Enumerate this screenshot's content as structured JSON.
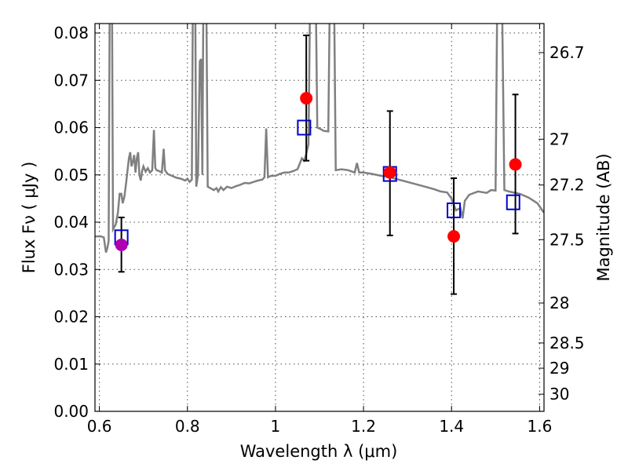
{
  "chart_data": {
    "type": "scatter",
    "xlabel": "Wavelength  λ (μm)",
    "ylabel": "Flux  Fν  ( μJy )",
    "y2label": "Magnitude (AB)",
    "xlim": [
      0.59,
      1.61
    ],
    "ylim": [
      0.0,
      0.082
    ],
    "grid": true,
    "x_ticks": [
      {
        "value": 0.6,
        "label": "0.6"
      },
      {
        "value": 0.8,
        "label": "0.8"
      },
      {
        "value": 1.0,
        "label": "1"
      },
      {
        "value": 1.2,
        "label": "1.2"
      },
      {
        "value": 1.4,
        "label": "1.4"
      },
      {
        "value": 1.6,
        "label": "1.6"
      }
    ],
    "y_ticks": [
      {
        "value": 0.0,
        "label": "0.00"
      },
      {
        "value": 0.01,
        "label": "0.01"
      },
      {
        "value": 0.02,
        "label": "0.02"
      },
      {
        "value": 0.03,
        "label": "0.03"
      },
      {
        "value": 0.04,
        "label": "0.04"
      },
      {
        "value": 0.05,
        "label": "0.05"
      },
      {
        "value": 0.06,
        "label": "0.06"
      },
      {
        "value": 0.07,
        "label": "0.07"
      },
      {
        "value": 0.08,
        "label": "0.08"
      }
    ],
    "y2_ticks": [
      {
        "value": 26.7,
        "label": "26.7"
      },
      {
        "value": 27.0,
        "label": "27"
      },
      {
        "value": 27.2,
        "label": "27.2"
      },
      {
        "value": 27.5,
        "label": "27.5"
      },
      {
        "value": 28.0,
        "label": "28"
      },
      {
        "value": 28.5,
        "label": "28.5"
      },
      {
        "value": 29.0,
        "label": "29"
      },
      {
        "value": 30.0,
        "label": "30"
      }
    ],
    "template_spectrum": {
      "color": "#808080",
      "points": [
        [
          0.59,
          0.037
        ],
        [
          0.603,
          0.037
        ],
        [
          0.61,
          0.0368
        ],
        [
          0.615,
          0.0336
        ],
        [
          0.618,
          0.0345
        ],
        [
          0.621,
          0.036
        ],
        [
          0.624,
          0.1
        ],
        [
          0.628,
          0.1
        ],
        [
          0.631,
          0.0385
        ],
        [
          0.637,
          0.0395
        ],
        [
          0.642,
          0.042
        ],
        [
          0.646,
          0.046
        ],
        [
          0.65,
          0.046
        ],
        [
          0.653,
          0.044
        ],
        [
          0.657,
          0.0455
        ],
        [
          0.661,
          0.0485
        ],
        [
          0.664,
          0.051
        ],
        [
          0.667,
          0.0535
        ],
        [
          0.67,
          0.0548
        ],
        [
          0.673,
          0.0518
        ],
        [
          0.676,
          0.0528
        ],
        [
          0.679,
          0.0542
        ],
        [
          0.682,
          0.0505
        ],
        [
          0.685,
          0.0535
        ],
        [
          0.688,
          0.0548
        ],
        [
          0.691,
          0.05
        ],
        [
          0.694,
          0.0488
        ],
        [
          0.697,
          0.0508
        ],
        [
          0.7,
          0.0518
        ],
        [
          0.705,
          0.0507
        ],
        [
          0.71,
          0.0514
        ],
        [
          0.715,
          0.0505
        ],
        [
          0.72,
          0.051
        ],
        [
          0.724,
          0.0595
        ],
        [
          0.727,
          0.0515
        ],
        [
          0.73,
          0.051
        ],
        [
          0.736,
          0.0508
        ],
        [
          0.742,
          0.0505
        ],
        [
          0.746,
          0.0555
        ],
        [
          0.749,
          0.051
        ],
        [
          0.755,
          0.0502
        ],
        [
          0.765,
          0.0498
        ],
        [
          0.775,
          0.0494
        ],
        [
          0.785,
          0.0492
        ],
        [
          0.795,
          0.0488
        ],
        [
          0.8,
          0.0492
        ],
        [
          0.805,
          0.0485
        ],
        [
          0.81,
          0.049
        ],
        [
          0.813,
          0.1
        ],
        [
          0.817,
          0.1
        ],
        [
          0.82,
          0.0475
        ],
        [
          0.824,
          0.05
        ],
        [
          0.828,
          0.074
        ],
        [
          0.831,
          0.0745
        ],
        [
          0.834,
          0.05
        ],
        [
          0.837,
          0.1
        ],
        [
          0.842,
          0.1
        ],
        [
          0.846,
          0.0475
        ],
        [
          0.852,
          0.0472
        ],
        [
          0.86,
          0.0468
        ],
        [
          0.866,
          0.0472
        ],
        [
          0.87,
          0.0465
        ],
        [
          0.876,
          0.0474
        ],
        [
          0.882,
          0.0468
        ],
        [
          0.89,
          0.0475
        ],
        [
          0.9,
          0.0472
        ],
        [
          0.91,
          0.0476
        ],
        [
          0.92,
          0.0479
        ],
        [
          0.93,
          0.0483
        ],
        [
          0.94,
          0.0482
        ],
        [
          0.95,
          0.0485
        ],
        [
          0.96,
          0.0488
        ],
        [
          0.97,
          0.049
        ],
        [
          0.975,
          0.0495
        ],
        [
          0.979,
          0.0598
        ],
        [
          0.983,
          0.0495
        ],
        [
          0.99,
          0.0498
        ],
        [
          1.0,
          0.0498
        ],
        [
          1.01,
          0.0502
        ],
        [
          1.02,
          0.0505
        ],
        [
          1.03,
          0.0505
        ],
        [
          1.04,
          0.0508
        ],
        [
          1.05,
          0.0512
        ],
        [
          1.06,
          0.0535
        ],
        [
          1.065,
          0.053
        ],
        [
          1.07,
          0.0545
        ],
        [
          1.075,
          0.0565
        ],
        [
          1.08,
          0.1
        ],
        [
          1.09,
          0.1
        ],
        [
          1.095,
          0.06
        ],
        [
          1.1,
          0.0598
        ],
        [
          1.11,
          0.0593
        ],
        [
          1.12,
          0.0592
        ],
        [
          1.125,
          0.1
        ],
        [
          1.132,
          0.1
        ],
        [
          1.137,
          0.051
        ],
        [
          1.15,
          0.0512
        ],
        [
          1.165,
          0.051
        ],
        [
          1.18,
          0.0505
        ],
        [
          1.185,
          0.0525
        ],
        [
          1.19,
          0.0505
        ],
        [
          1.2,
          0.0505
        ],
        [
          1.22,
          0.0502
        ],
        [
          1.24,
          0.0498
        ],
        [
          1.26,
          0.0495
        ],
        [
          1.28,
          0.049
        ],
        [
          1.3,
          0.0485
        ],
        [
          1.32,
          0.048
        ],
        [
          1.34,
          0.0475
        ],
        [
          1.36,
          0.047
        ],
        [
          1.375,
          0.0465
        ],
        [
          1.39,
          0.0463
        ],
        [
          1.4,
          0.045
        ],
        [
          1.41,
          0.0425
        ],
        [
          1.42,
          0.043
        ],
        [
          1.425,
          0.0408
        ],
        [
          1.43,
          0.0445
        ],
        [
          1.44,
          0.0458
        ],
        [
          1.46,
          0.0465
        ],
        [
          1.48,
          0.0462
        ],
        [
          1.49,
          0.0468
        ],
        [
          1.5,
          0.0467
        ],
        [
          1.505,
          0.1
        ],
        [
          1.513,
          0.1
        ],
        [
          1.52,
          0.0468
        ],
        [
          1.53,
          0.0465
        ],
        [
          1.54,
          0.0463
        ],
        [
          1.555,
          0.046
        ],
        [
          1.575,
          0.0452
        ],
        [
          1.595,
          0.044
        ],
        [
          1.61,
          0.042
        ]
      ]
    },
    "series": [
      {
        "name": "",
        "marker": "square",
        "color": "#0000cc",
        "points": [
          {
            "x": 0.65,
            "y": 0.0368
          },
          {
            "x": 1.065,
            "y": 0.06
          },
          {
            "x": 1.26,
            "y": 0.0502
          },
          {
            "x": 1.405,
            "y": 0.0425
          },
          {
            "x": 1.54,
            "y": 0.0442
          }
        ]
      },
      {
        "name": "",
        "marker": "circle",
        "color": "#ff0000",
        "points": [
          {
            "x": 0.65,
            "y": 0.0352,
            "yerr_low": 0.0295,
            "yerr_high": 0.041,
            "color": "#b000b0"
          },
          {
            "x": 1.07,
            "y": 0.0662,
            "yerr_low": 0.053,
            "yerr_high": 0.0795
          },
          {
            "x": 1.26,
            "y": 0.0505,
            "yerr_low": 0.0372,
            "yerr_high": 0.0635
          },
          {
            "x": 1.405,
            "y": 0.037,
            "yerr_low": 0.0248,
            "yerr_high": 0.0493
          },
          {
            "x": 1.545,
            "y": 0.0522,
            "yerr_low": 0.0376,
            "yerr_high": 0.067
          }
        ]
      }
    ]
  }
}
